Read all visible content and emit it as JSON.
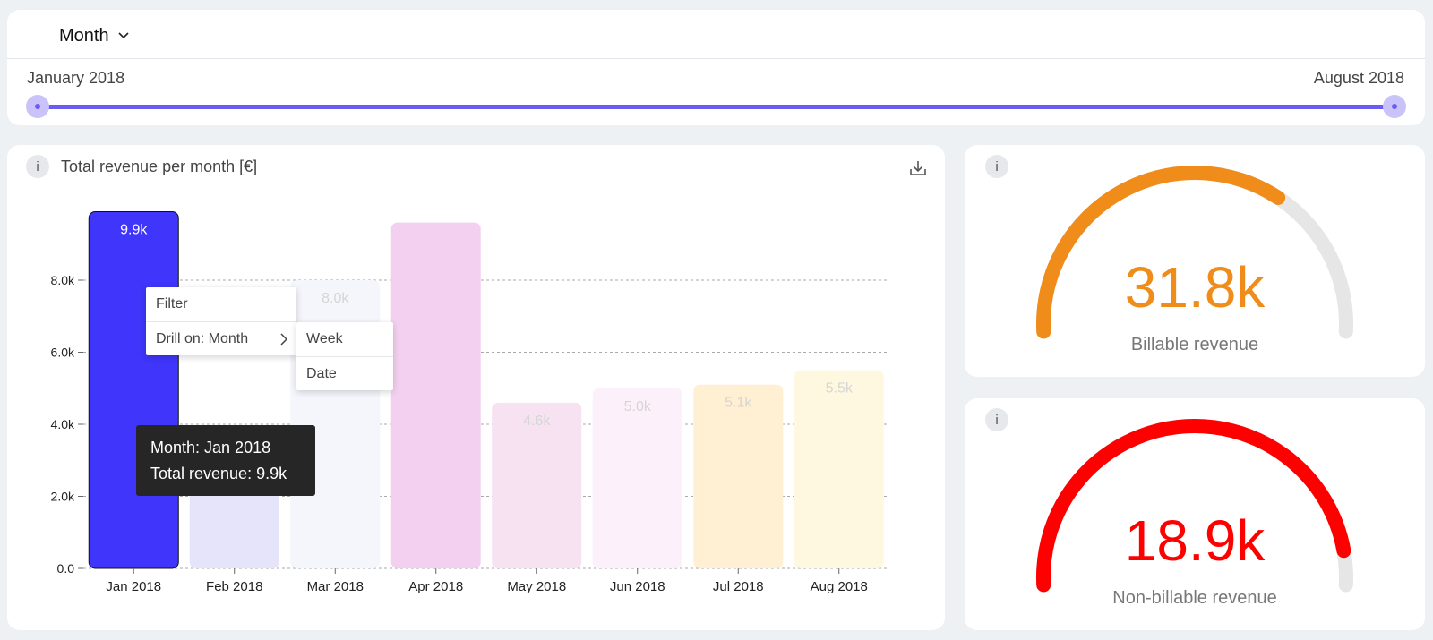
{
  "filter": {
    "period_label": "Month",
    "icons": {
      "dropdown": "chevron-down-icon"
    },
    "range": {
      "start_label": "January 2018",
      "end_label": "August 2018"
    }
  },
  "chart": {
    "info_label": "i",
    "title": "Total revenue per month [€]",
    "icons": {
      "download": "download-icon",
      "info": "info-icon"
    },
    "tooltip": {
      "month_line": "Month: Jan 2018",
      "revenue_line": "Total revenue: 9.9k"
    },
    "context_menu": {
      "items": [
        "Filter",
        "Drill on: Month"
      ],
      "submenu": [
        "Week",
        "Date"
      ]
    }
  },
  "chart_data": {
    "type": "bar",
    "categories": [
      "Jan 2018",
      "Feb 2018",
      "Mar 2018",
      "Apr 2018",
      "May 2018",
      "Jun 2018",
      "Jul 2018",
      "Aug 2018"
    ],
    "values": [
      9.9,
      2.9,
      8.0,
      9.6,
      4.6,
      5.0,
      5.1,
      5.5
    ],
    "data_labels": [
      "9.9k",
      "",
      "8.0k",
      "",
      "4.6k",
      "5.0k",
      "5.1k",
      "5.5k"
    ],
    "yticks": [
      "0.0",
      "2.0k",
      "4.0k",
      "6.0k",
      "8.0k"
    ],
    "ylim": [
      0,
      10
    ],
    "grid": true,
    "colors": [
      "#3f35fb",
      "#e6e4fb",
      "#f5f6fc",
      "#f4d0f0",
      "#f7e2f2",
      "#fcf0fa",
      "#fff0d3",
      "#fff8e0"
    ],
    "selected_index": 0
  },
  "gauges": [
    {
      "value": "31.8k",
      "label": "Billable revenue",
      "fraction": 0.68,
      "color": "#ef8c1a",
      "info_label": "i"
    },
    {
      "value": "18.9k",
      "label": "Non-billable revenue",
      "fraction": 0.93,
      "color": "#ff0000",
      "info_label": "i"
    }
  ]
}
